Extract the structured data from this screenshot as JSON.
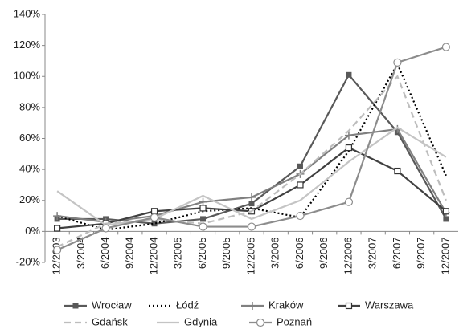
{
  "chart_data": {
    "type": "line",
    "categories": [
      "12/2003",
      "3/2004",
      "6/2004",
      "9/2004",
      "12/2004",
      "3/2005",
      "6/2005",
      "9/2005",
      "12/2005",
      "3/2006",
      "6/2006",
      "9/2006",
      "12/2006",
      "3/2007",
      "6/2007",
      "9/2007",
      "12/2007"
    ],
    "connect_gaps": true,
    "ylim": [
      -20,
      140
    ],
    "yticks": [
      {
        "value": -20,
        "label": "-20%"
      },
      {
        "value": 0,
        "label": "0%"
      },
      {
        "value": 20,
        "label": "20%"
      },
      {
        "value": 40,
        "label": "40%"
      },
      {
        "value": 60,
        "label": "60%"
      },
      {
        "value": 80,
        "label": "80%"
      },
      {
        "value": 100,
        "label": "100%"
      },
      {
        "value": 120,
        "label": "120%"
      },
      {
        "value": 140,
        "label": "140%"
      }
    ],
    "grid": false,
    "legend": "bottom",
    "series": [
      {
        "name": "Wrocław",
        "color": "#595959",
        "dash": "solid",
        "marker": "filled-square",
        "values": [
          8,
          null,
          8,
          null,
          5,
          null,
          8,
          null,
          18,
          null,
          42,
          null,
          101,
          null,
          64,
          null,
          8
        ]
      },
      {
        "name": "Łódź",
        "color": "#000000",
        "dash": "dotted",
        "marker": "none",
        "values": [
          10,
          null,
          1,
          null,
          5,
          null,
          13,
          null,
          15,
          null,
          9,
          null,
          52,
          null,
          108,
          null,
          36
        ]
      },
      {
        "name": "Kraków",
        "color": "#808080",
        "dash": "solid",
        "marker": "plus",
        "values": [
          10,
          null,
          6,
          null,
          10,
          null,
          19,
          null,
          22,
          null,
          37,
          null,
          62,
          null,
          66,
          null,
          12
        ]
      },
      {
        "name": "Warszawa",
        "color": "#404040",
        "dash": "solid",
        "marker": "open-square",
        "values": [
          2,
          null,
          5,
          null,
          13,
          null,
          15,
          null,
          13,
          null,
          30,
          null,
          54,
          null,
          39,
          null,
          13
        ]
      },
      {
        "name": "Gdańsk",
        "color": "#bdbdbd",
        "dash": "dashed",
        "marker": "none",
        "values": [
          -10,
          null,
          5,
          null,
          8,
          null,
          5,
          null,
          13,
          null,
          37,
          null,
          65,
          null,
          100,
          null,
          20
        ]
      },
      {
        "name": "Gdynia",
        "color": "#c4c4c4",
        "dash": "solid",
        "marker": "none",
        "values": [
          26,
          null,
          4,
          null,
          8,
          null,
          23,
          null,
          8,
          null,
          20,
          null,
          45,
          null,
          67,
          null,
          48
        ]
      },
      {
        "name": "Poznań",
        "color": "#8c8c8c",
        "dash": "solid",
        "marker": "open-circle",
        "values": [
          -12,
          null,
          2,
          null,
          9,
          null,
          3,
          null,
          3,
          null,
          10,
          null,
          19,
          null,
          109,
          null,
          119
        ]
      }
    ]
  }
}
